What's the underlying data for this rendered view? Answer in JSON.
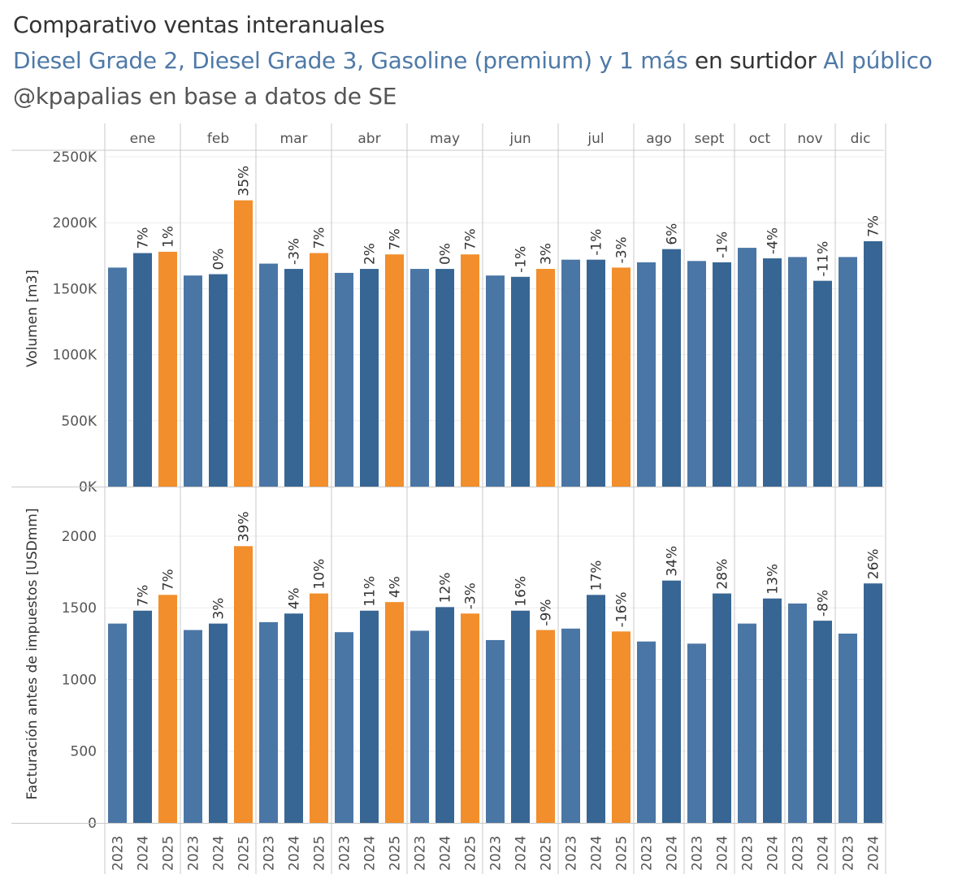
{
  "header": {
    "title": "Comparativo ventas interanuales",
    "subtitle_products": "Diesel Grade 2, Diesel Grade 3, Gasoline (premium) y 1 más",
    "subtitle_mid": " en surtidor ",
    "subtitle_channel": "Al público",
    "source": "@kpapalias en base a datos de SE"
  },
  "colors": {
    "y2023": "#4a76a5",
    "y2024": "#386694",
    "y2025": "#f28e2b",
    "grid": "#ececec",
    "divider": "#c8c8c8",
    "text": "#555555",
    "label": "#333333"
  },
  "chart_data": [
    {
      "type": "bar",
      "ylabel": "Volumen [m3]",
      "ylim": [
        0,
        2500000
      ],
      "yticks": [
        0,
        500000,
        1000000,
        1500000,
        2000000,
        2500000
      ],
      "ytick_labels": [
        "0K",
        "500K",
        "1000K",
        "1500K",
        "2000K",
        "2500K"
      ],
      "grid": true,
      "months": [
        "ene",
        "feb",
        "mar",
        "abr",
        "may",
        "jun",
        "jul",
        "ago",
        "sept",
        "oct",
        "nov",
        "dic"
      ],
      "series": [
        {
          "year": "2023",
          "values": [
            1660000,
            1600000,
            1690000,
            1620000,
            1650000,
            1600000,
            1720000,
            1700000,
            1710000,
            1810000,
            1740000,
            1740000
          ],
          "labels": [
            "",
            "",
            "",
            "",
            "",
            "",
            "",
            "",
            "",
            "",
            "",
            ""
          ]
        },
        {
          "year": "2024",
          "values": [
            1770000,
            1610000,
            1650000,
            1650000,
            1650000,
            1590000,
            1720000,
            1800000,
            1700000,
            1730000,
            1560000,
            1860000
          ],
          "labels": [
            "7%",
            "0%",
            "-3%",
            "2%",
            "0%",
            "-1%",
            "-1%",
            "6%",
            "-1%",
            "-4%",
            "-11%",
            "7%"
          ]
        },
        {
          "year": "2025",
          "values": [
            1780000,
            2170000,
            1770000,
            1760000,
            1760000,
            1650000,
            1660000,
            null,
            null,
            null,
            null,
            null
          ],
          "labels": [
            "1%",
            "35%",
            "7%",
            "7%",
            "7%",
            "3%",
            "-3%",
            "",
            "",
            "",
            "",
            ""
          ]
        }
      ]
    },
    {
      "type": "bar",
      "ylabel": "Facturación antes de impuestos [USDmm]",
      "ylim": [
        0,
        2300
      ],
      "yticks": [
        0,
        500,
        1000,
        1500,
        2000
      ],
      "ytick_labels": [
        "0",
        "500",
        "1000",
        "1500",
        "2000"
      ],
      "grid": true,
      "months": [
        "ene",
        "feb",
        "mar",
        "abr",
        "may",
        "jun",
        "jul",
        "ago",
        "sept",
        "oct",
        "nov",
        "dic"
      ],
      "series": [
        {
          "year": "2023",
          "values": [
            1390,
            1345,
            1400,
            1330,
            1340,
            1275,
            1355,
            1265,
            1250,
            1390,
            1530,
            1320
          ],
          "labels": [
            "",
            "",
            "",
            "",
            "",
            "",
            "",
            "",
            "",
            "",
            "",
            ""
          ]
        },
        {
          "year": "2024",
          "values": [
            1480,
            1390,
            1460,
            1480,
            1505,
            1480,
            1590,
            1690,
            1600,
            1565,
            1410,
            1670
          ],
          "labels": [
            "7%",
            "3%",
            "4%",
            "11%",
            "12%",
            "16%",
            "17%",
            "34%",
            "28%",
            "13%",
            "-8%",
            "26%"
          ]
        },
        {
          "year": "2025",
          "values": [
            1590,
            1930,
            1600,
            1540,
            1460,
            1345,
            1335,
            null,
            null,
            null,
            null,
            null
          ],
          "labels": [
            "7%",
            "39%",
            "10%",
            "4%",
            "-3%",
            "-9%",
            "-16%",
            "",
            "",
            "",
            "",
            ""
          ]
        }
      ]
    }
  ]
}
